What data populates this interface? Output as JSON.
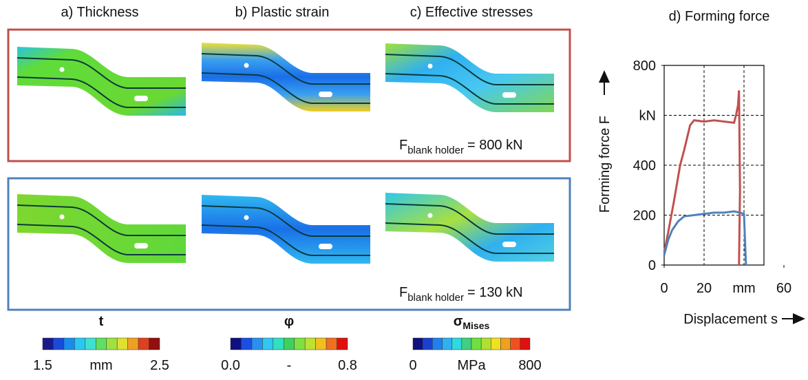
{
  "panels": [
    {
      "title": "a) Thickness"
    },
    {
      "title": "b) Plastic strain"
    },
    {
      "title": "c) Effective stresses"
    }
  ],
  "cases": [
    {
      "symbol": "F",
      "subscript": "blank holder",
      "value": "= 800 kN"
    },
    {
      "symbol": "F",
      "subscript": "blank holder",
      "value": "= 130 kN"
    }
  ],
  "colorbars": [
    {
      "symbol": "t",
      "subscript": null,
      "min": "1.5",
      "unit": "mm",
      "max": "2.5"
    },
    {
      "symbol": "φ",
      "subscript": null,
      "min": "0.0",
      "unit": "-",
      "max": "0.8"
    },
    {
      "symbol": "σ",
      "subscript": "Mises",
      "min": "0",
      "unit": "MPa",
      "max": "800"
    }
  ],
  "chart_data": {
    "type": "line",
    "title": "d) Forming force",
    "xlabel": "Displacement s",
    "ylabel": "Forming force F",
    "xlim": [
      0,
      50
    ],
    "ylim": [
      0,
      800
    ],
    "xticks": [
      0,
      20,
      {
        "value": 40,
        "label": "mm"
      },
      60
    ],
    "yticks": [
      0,
      200,
      400,
      {
        "value": 600,
        "label": "kN"
      },
      800
    ],
    "grid": true,
    "series": [
      {
        "color": "#c0504d",
        "x": [
          0,
          2,
          5,
          8,
          10,
          13,
          15,
          20,
          25,
          30,
          35,
          36,
          37,
          37.5,
          38,
          37.5
        ],
        "values": [
          50,
          130,
          260,
          400,
          460,
          560,
          580,
          575,
          580,
          575,
          570,
          600,
          640,
          700,
          300,
          0
        ]
      },
      {
        "color": "#4f81bd",
        "x": [
          0,
          2,
          4,
          7,
          10,
          15,
          20,
          25,
          30,
          35,
          38,
          40,
          40.5,
          41
        ],
        "values": [
          40,
          100,
          140,
          175,
          195,
          200,
          205,
          210,
          210,
          215,
          210,
          205,
          100,
          0
        ]
      }
    ]
  }
}
